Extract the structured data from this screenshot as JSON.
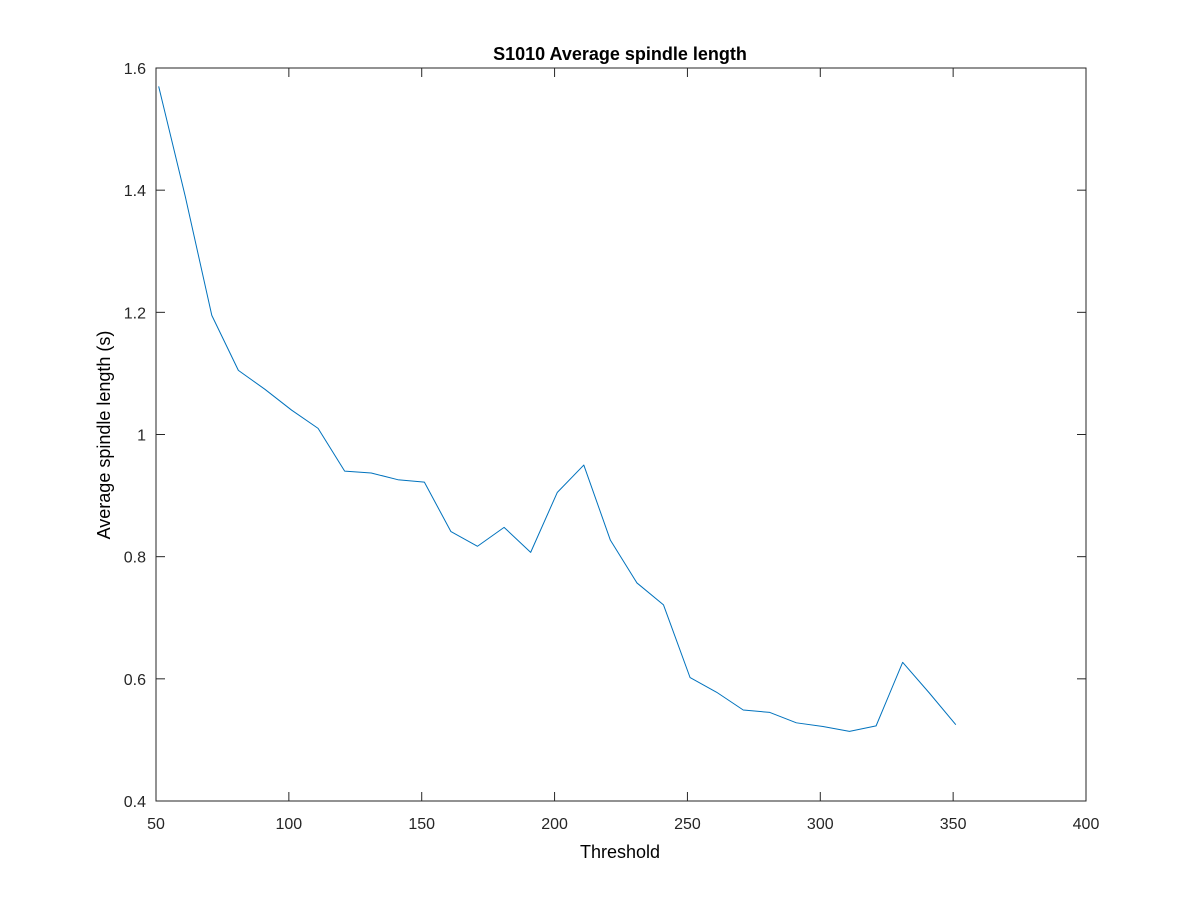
{
  "chart_data": {
    "type": "line",
    "title": "S1010 Average spindle length",
    "xlabel": "Threshold",
    "ylabel": "Average spindle length (s)",
    "xlim": [
      50,
      400
    ],
    "ylim": [
      0.4,
      1.6
    ],
    "xticks": [
      50,
      100,
      150,
      200,
      250,
      300,
      350,
      400
    ],
    "xtick_labels": [
      "50",
      "100",
      "150",
      "200",
      "250",
      "300",
      "350",
      "400"
    ],
    "yticks": [
      0.4,
      0.6,
      0.8,
      1.0,
      1.2,
      1.4,
      1.6
    ],
    "ytick_labels": [
      "0.4",
      "0.6",
      "0.8",
      "1",
      "1.2",
      "1.4",
      "1.6"
    ],
    "grid": false,
    "line_color": "#0072bd",
    "series": [
      {
        "x": [
          51,
          61,
          71,
          81,
          91,
          101,
          111,
          121,
          131,
          141,
          151,
          161,
          171,
          181,
          191,
          201,
          211,
          221,
          231,
          241,
          251,
          261,
          271,
          281,
          291,
          301,
          311,
          321,
          331,
          341,
          351
        ],
        "values": [
          1.57,
          1.39,
          1.195,
          1.105,
          1.074,
          1.04,
          1.01,
          0.94,
          0.937,
          0.926,
          0.922,
          0.841,
          0.817,
          0.848,
          0.807,
          0.905,
          0.95,
          0.827,
          0.757,
          0.721,
          0.602,
          0.578,
          0.549,
          0.545,
          0.528,
          0.522,
          0.514,
          0.523,
          0.627,
          0.577,
          0.525
        ]
      }
    ]
  }
}
